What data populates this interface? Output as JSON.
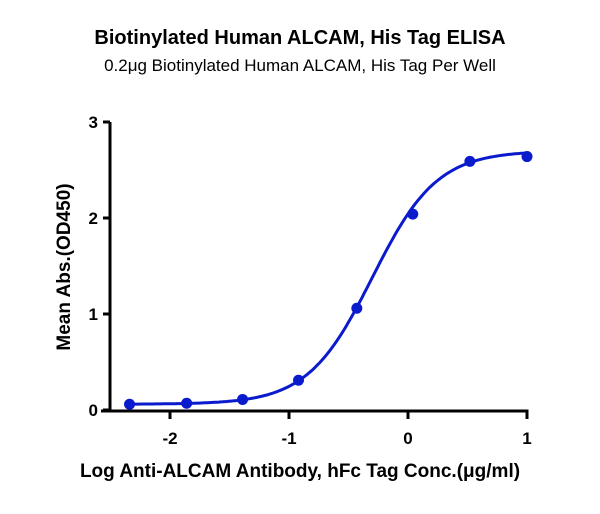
{
  "chart_data": {
    "type": "line",
    "title": "Biotinylated Human ALCAM, His Tag ELISA",
    "subtitle": "0.2μg Biotinylated Human ALCAM, His Tag Per Well",
    "xlabel": "Log Anti-ALCAM Antibody, hFc Tag Conc.(μg/ml)",
    "ylabel": "Mean Abs.(OD450)",
    "xlim": [
      -2.5,
      1.0
    ],
    "ylim": [
      0,
      3
    ],
    "xticks": [
      -2,
      -1,
      0,
      1
    ],
    "yticks": [
      0,
      1,
      2,
      3
    ],
    "grid": false,
    "legend": null,
    "series": [
      {
        "name": "Biotinylated Human ALCAM, His Tag",
        "color": "#0a1acd",
        "x": [
          -2.34,
          -1.86,
          -1.39,
          -0.92,
          -0.43,
          0.04,
          0.52,
          1.0
        ],
        "y": [
          0.06,
          0.07,
          0.11,
          0.31,
          1.06,
          2.04,
          2.59,
          2.64
        ],
        "fit": "4PL sigmoidal curve",
        "fit_params": {
          "bottom": 0.06,
          "top": 2.7,
          "logEC50": -0.3,
          "hill": 1.6
        }
      }
    ]
  }
}
